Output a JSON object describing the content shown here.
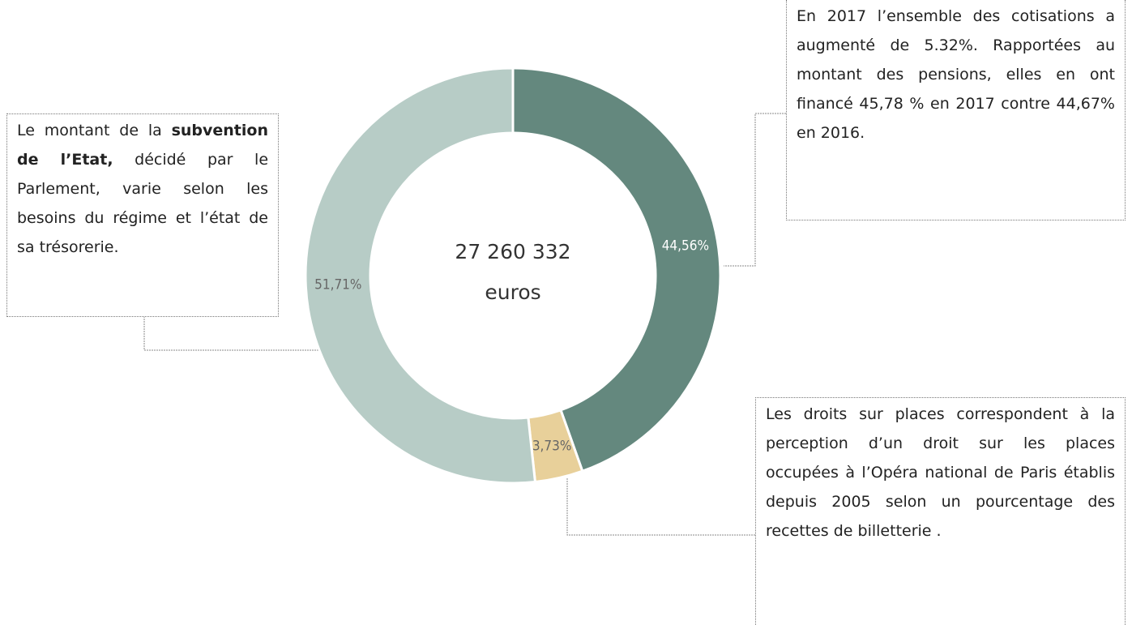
{
  "chart_data": {
    "type": "pie",
    "donut": true,
    "values": [
      44.56,
      3.73,
      51.71
    ],
    "value_labels": [
      "44,56%",
      "3,73%",
      "51,71%"
    ],
    "colors": [
      "#64887e",
      "#e8d09a",
      "#b7ccc6"
    ],
    "label_colors": [
      "#ffffff",
      "#666666",
      "#666666"
    ],
    "center_text": [
      "27 260 332",
      "euros"
    ],
    "annotations": [
      {
        "parts": [
          {
            "text": "Le montant de la ",
            "bold": false
          },
          {
            "text": "subvention de l’Etat,",
            "bold": true
          },
          {
            "text": " décidé par le Parlement, varie selon les besoins du régime et l’état de sa trésorerie.",
            "bold": false
          }
        ]
      },
      {
        "parts": [
          {
            "text": "En 2017 l’ensemble des cotisations a augmenté de 5.32%. Rapportées au montant des pensions, elles en ont financé 45,78 %  en 2017 contre 44,67% en 2016.",
            "bold": false
          }
        ]
      },
      {
        "parts": [
          {
            "text": "Les droits sur places correspondent  à la perception d’un droit sur les places occupées à l’Opéra national de Paris établis depuis 2005 selon un pourcentage des recettes de billetterie .",
            "bold": false
          }
        ]
      }
    ]
  }
}
